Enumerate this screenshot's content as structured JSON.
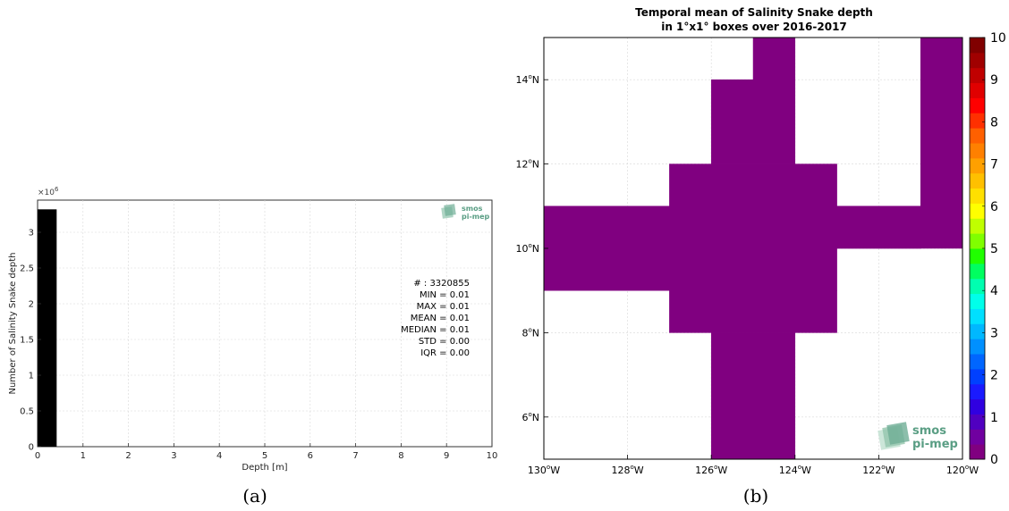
{
  "captions": {
    "a": "(a)",
    "b": "(b)"
  },
  "logo": {
    "line1": "smos",
    "line2": "pi-mep",
    "color": "#5a9e84"
  },
  "colors": {
    "bar": "#000000",
    "map_fill": "#800080",
    "grid": "#d8d8d8"
  },
  "chart_data": [
    {
      "type": "bar",
      "title": "",
      "xlabel": "Depth [m]",
      "ylabel": "Number of Salinity Snake depth",
      "y_multiplier": "×10",
      "y_multiplier_exp": "6",
      "xlim": [
        0,
        10
      ],
      "ylim": [
        0,
        3.45
      ],
      "xticks": [
        0,
        1,
        2,
        3,
        4,
        5,
        6,
        7,
        8,
        9,
        10
      ],
      "yticks": [
        0,
        0.5,
        1,
        1.5,
        2,
        2.5,
        3
      ],
      "ytick_labels": [
        "0",
        "0.5",
        "1",
        "1.5",
        "2",
        "2.5",
        "3"
      ],
      "bars": [
        {
          "x0": 0,
          "x1": 0.42,
          "value": 3.320855
        }
      ],
      "grid": true,
      "stats": [
        "# : 3320855",
        "MIN = 0.01",
        "MAX =  0.01",
        "MEAN = 0.01",
        "MEDIAN = 0.01",
        "STD = 0.00",
        "IQR = 0.00"
      ]
    },
    {
      "type": "heatmap",
      "title": [
        "Temporal mean of Salinity Snake depth",
        "in 1°x1° boxes over 2016-2017"
      ],
      "lon_range": [
        -130,
        -120
      ],
      "lat_range": [
        5,
        15
      ],
      "xticks": [
        {
          "value": -130,
          "num": "130",
          "suffix": "W"
        },
        {
          "value": -128,
          "num": "128",
          "suffix": "W"
        },
        {
          "value": -126,
          "num": "126",
          "suffix": "W"
        },
        {
          "value": -124,
          "num": "124",
          "suffix": "W"
        },
        {
          "value": -122,
          "num": "122",
          "suffix": "W"
        },
        {
          "value": -120,
          "num": "120",
          "suffix": "W"
        }
      ],
      "yticks": [
        {
          "value": 6,
          "num": "6",
          "suffix": "N"
        },
        {
          "value": 8,
          "num": "8",
          "suffix": "N"
        },
        {
          "value": 10,
          "num": "10",
          "suffix": "N"
        },
        {
          "value": 12,
          "num": "12",
          "suffix": "N"
        },
        {
          "value": 14,
          "num": "14",
          "suffix": "N"
        }
      ],
      "cells": [
        {
          "lon": [
            -125,
            -124
          ],
          "lat": [
            14,
            15
          ],
          "value": 0
        },
        {
          "lon": [
            -126,
            -124
          ],
          "lat": [
            12,
            14
          ],
          "value": 0
        },
        {
          "lon": [
            -127,
            -123
          ],
          "lat": [
            11,
            12
          ],
          "value": 0
        },
        {
          "lon": [
            -130,
            -121
          ],
          "lat": [
            10,
            11
          ],
          "value": 0
        },
        {
          "lon": [
            -130,
            -123
          ],
          "lat": [
            9,
            10
          ],
          "value": 0
        },
        {
          "lon": [
            -127,
            -123
          ],
          "lat": [
            8,
            9
          ],
          "value": 0
        },
        {
          "lon": [
            -126,
            -124
          ],
          "lat": [
            5,
            8
          ],
          "value": 0
        },
        {
          "lon": [
            -121,
            -120
          ],
          "lat": [
            10,
            15
          ],
          "value": 0
        },
        {
          "lon": [
            -123,
            -121
          ],
          "lat": [
            10,
            11
          ],
          "value": 0
        }
      ],
      "colorbar": {
        "min": 0,
        "max": 10,
        "ticks": [
          0,
          1,
          2,
          3,
          4,
          5,
          6,
          7,
          8,
          9,
          10
        ],
        "colors": [
          "#800080",
          "#7000a0",
          "#5000c0",
          "#3000e0",
          "#1a1aff",
          "#0040ff",
          "#0066ff",
          "#0090ff",
          "#00b8ff",
          "#00e0ff",
          "#00ffea",
          "#00ffb0",
          "#00ff60",
          "#20ff00",
          "#80ff00",
          "#c0ff00",
          "#ffff00",
          "#ffe000",
          "#ffc000",
          "#ffa000",
          "#ff8000",
          "#ff6000",
          "#ff3000",
          "#ff0000",
          "#e00000",
          "#c00000",
          "#a00000",
          "#800000"
        ]
      }
    }
  ]
}
